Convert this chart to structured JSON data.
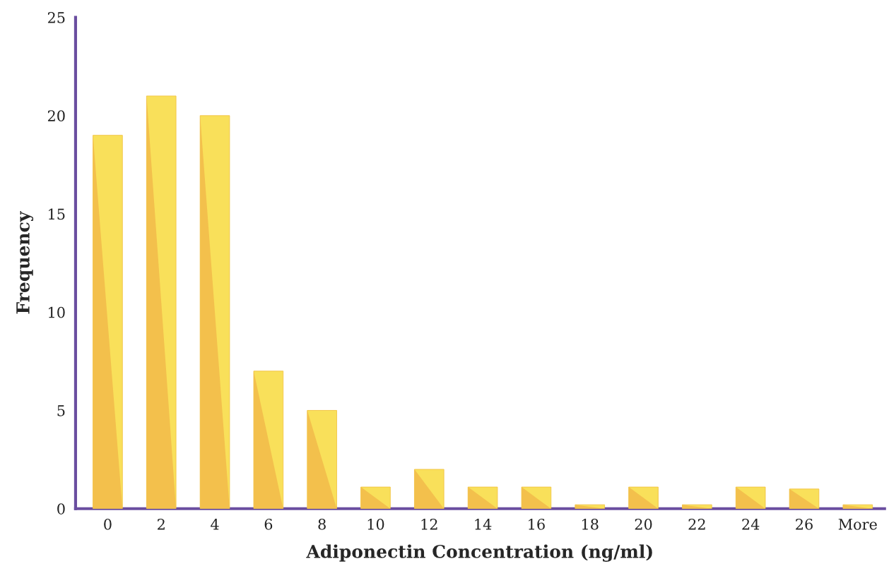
{
  "chart_data": {
    "type": "bar",
    "xlabel": "Adiponectin Concentration (ng/ml)",
    "ylabel": "Frequency",
    "categories": [
      "0",
      "2",
      "4",
      "6",
      "8",
      "10",
      "12",
      "14",
      "16",
      "18",
      "20",
      "22",
      "24",
      "26",
      "More"
    ],
    "values": [
      19,
      21,
      20,
      7,
      5,
      1.1,
      2,
      1.1,
      1.1,
      0.2,
      1.1,
      0.2,
      1.1,
      1,
      0.2
    ],
    "color": "#f9e05a",
    "ylim": [
      0,
      25
    ],
    "yticks": [
      0,
      5,
      10,
      15,
      20,
      25
    ],
    "grid": false,
    "legend": false
  }
}
